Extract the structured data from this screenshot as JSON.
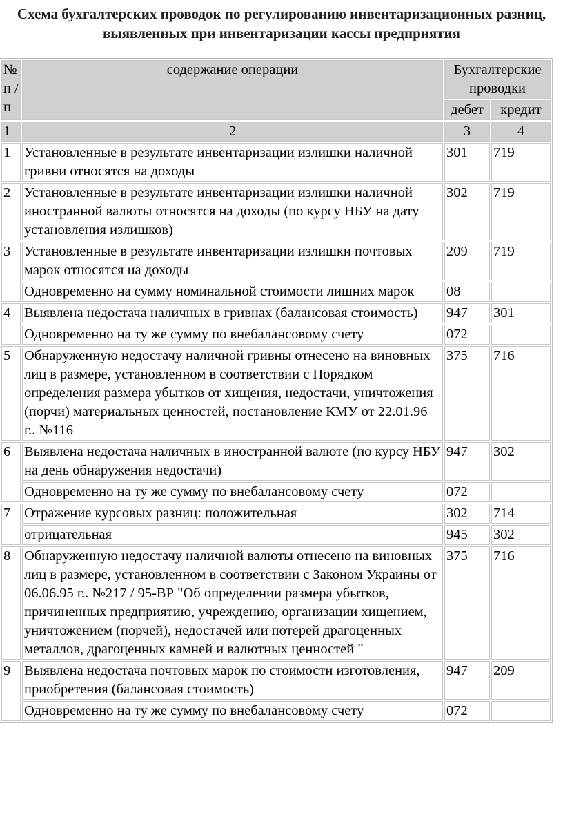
{
  "title": "Схема бухгалтерских проводок по регулированию инвентаризационных разниц, выявленных при инвентаризации кассы предприятия",
  "header": {
    "num": "№ п / п",
    "content": "содержание операции",
    "entries": "Бухгалтерские проводки",
    "debit": "дебет",
    "credit": "кредит"
  },
  "index_row": [
    "1",
    "2",
    "3",
    "4"
  ],
  "rows": [
    {
      "num": "1",
      "ops": [
        {
          "text": "Установленные в результате инвентаризации излишки наличной гривни относятся на доходы",
          "debit": "301",
          "credit": "719"
        }
      ]
    },
    {
      "num": "2",
      "ops": [
        {
          "text": "Установленные в результате инвентаризации излишки наличной иностранной валюты относятся на доходы (по курсу НБУ на дату установления излишков)",
          "debit": "302",
          "credit": "719"
        }
      ]
    },
    {
      "num": "3",
      "ops": [
        {
          "text": "Установленные в результате инвентаризации излишки почтовых марок относятся на доходы",
          "debit": "209",
          "credit": "719"
        },
        {
          "text": "Одновременно на сумму номинальной стоимости лишних марок",
          "debit": "08",
          "credit": ""
        }
      ]
    },
    {
      "num": "4",
      "ops": [
        {
          "text": "Выявлена недостача наличных в гривнах (балансовая стоимость)",
          "debit": "947",
          "credit": "301"
        },
        {
          "text": "Одновременно на ту же сумму по внебалансовому счету",
          "debit": "072",
          "credit": ""
        }
      ]
    },
    {
      "num": "5",
      "ops": [
        {
          "text": "Обнаруженную недостачу наличной гривны отнесено на виновных лиц в размере, установленном в соответствии с Порядком определения размера убытков от хищения, недостачи, уничтожения (порчи) материальных ценностей, постановление КМУ от 22.01.96 г.. №116",
          "debit": "375",
          "credit": "716"
        }
      ]
    },
    {
      "num": "6",
      "ops": [
        {
          "text": "Выявлена недостача наличных в иностранной валюте (по курсу НБУ на день обнаружения недостачи)",
          "debit": "947",
          "credit": "302"
        },
        {
          "text": "Одновременно на ту же сумму по внебалансовому счету",
          "debit": "072",
          "credit": ""
        }
      ]
    },
    {
      "num": "7",
      "ops": [
        {
          "text": "Отражение курсовых разниц: положительная",
          "debit": "302",
          "credit": "714"
        },
        {
          "text": "отрицательная",
          "debit": "945",
          "credit": "302"
        }
      ]
    },
    {
      "num": "8",
      "ops": [
        {
          "text": "Обнаруженную недостачу наличной валюты отнесено на виновных лиц в размере, установленном в соответствии с Законом Украины от 06.06.95 г.. №217 / 95-ВР \"Об определении размера убытков, причиненных предприятию, учреждению, организации хищением, уничтожением (порчей), недостачей или потерей драгоценных металлов, драгоценных камней и валютных ценностей \"",
          "debit": "375",
          "credit": "716"
        }
      ]
    },
    {
      "num": "9",
      "ops": [
        {
          "text": "Выявлена недостача почтовых марок по стоимости изготовления, приобретения (балансовая стоимость)",
          "debit": "947",
          "credit": "209"
        },
        {
          "text": "Одновременно на ту же сумму по внебалансовому счету",
          "debit": "072",
          "credit": ""
        }
      ]
    }
  ]
}
